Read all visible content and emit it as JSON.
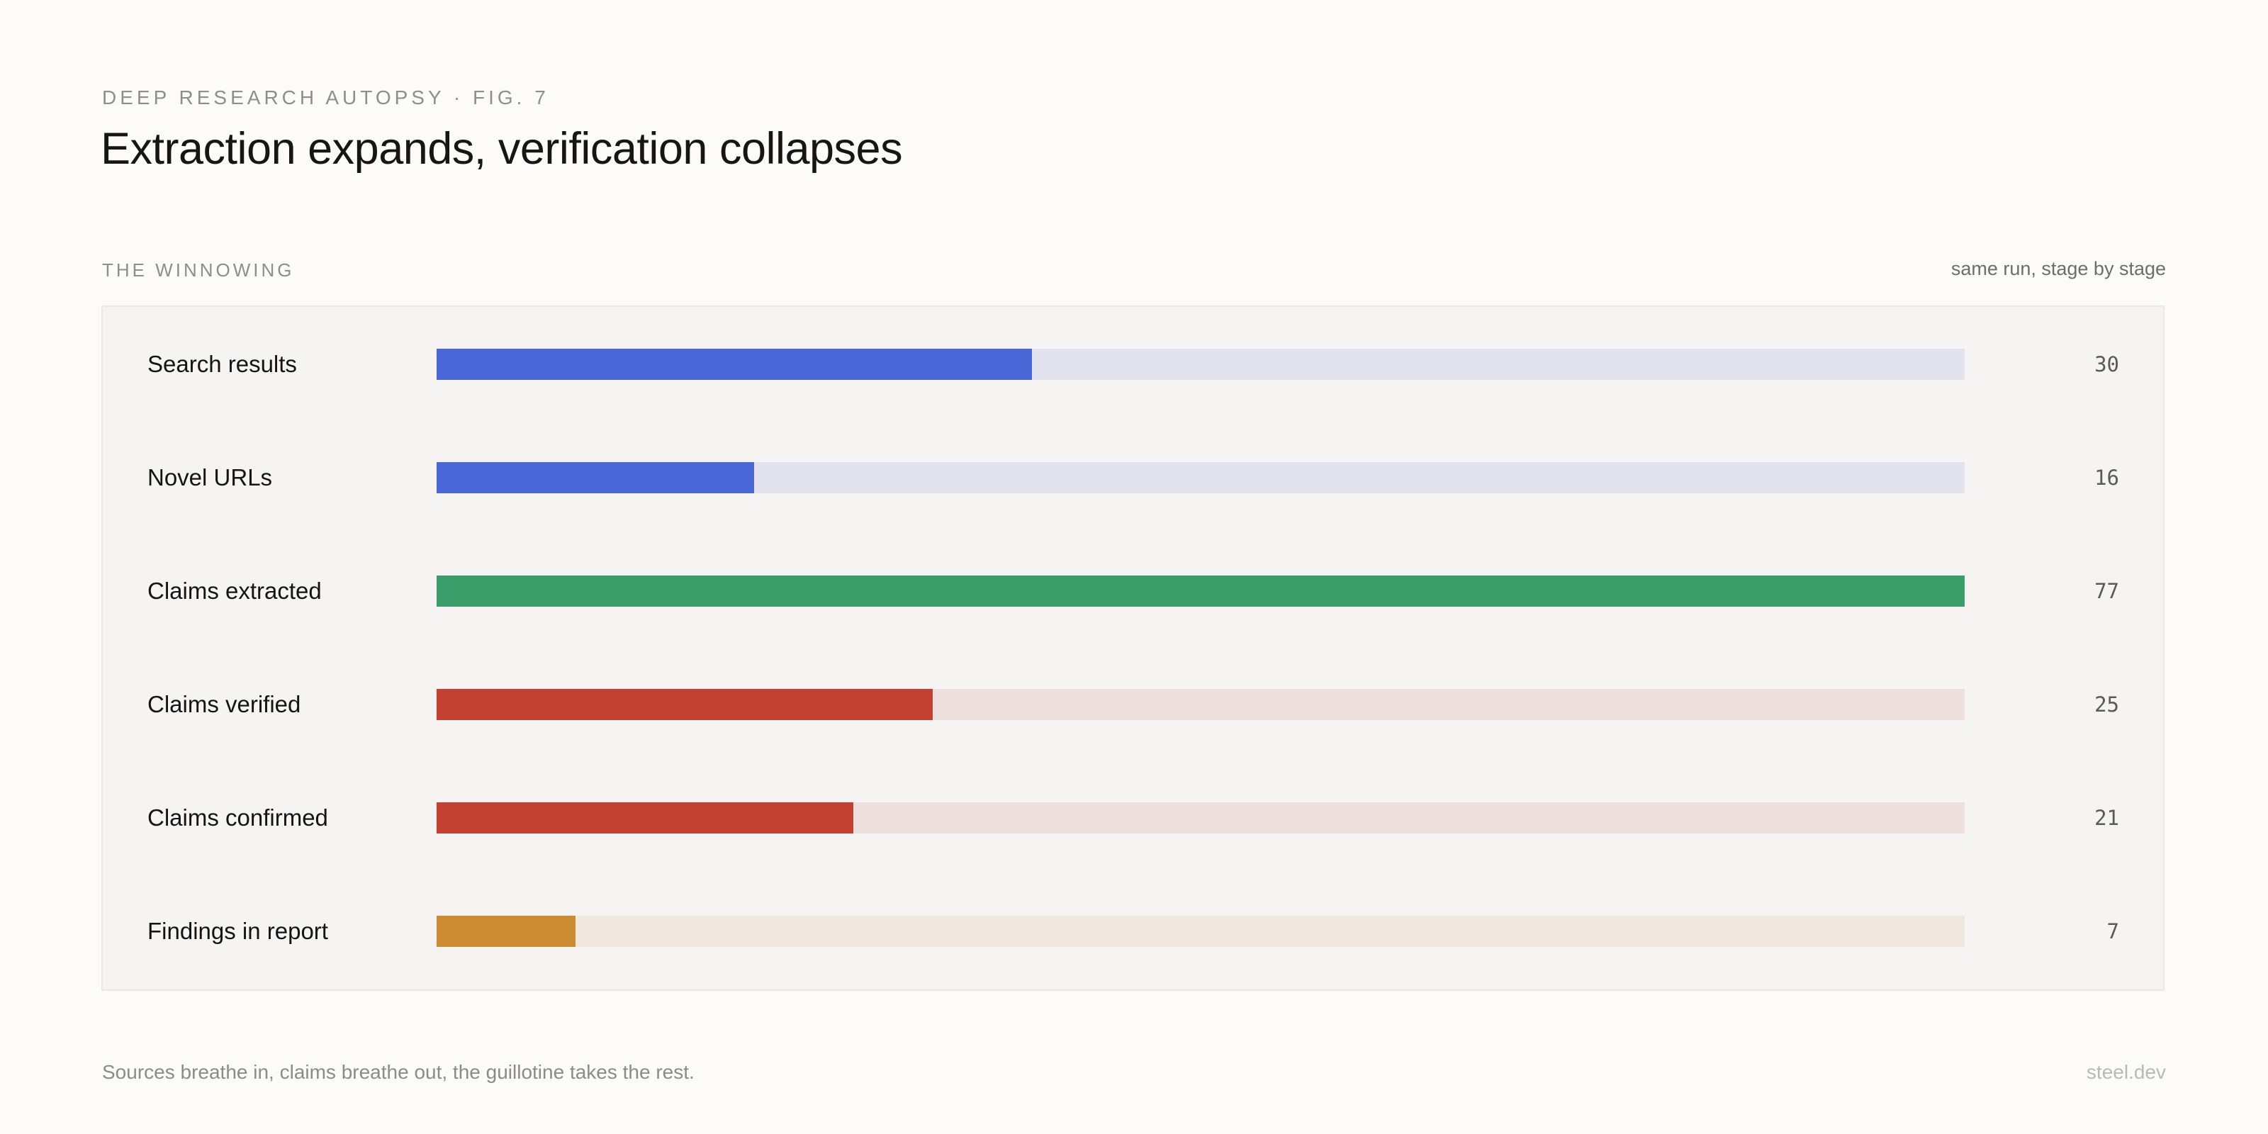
{
  "header": {
    "eyebrow": "DEEP RESEARCH AUTOPSY · FIG. 7",
    "title": "Extraction expands, verification collapses"
  },
  "section": {
    "label": "THE WINNOWING",
    "note": "same run, stage by stage"
  },
  "footer": {
    "caption": "Sources breathe in, claims breathe out, the guillotine takes the rest.",
    "brand": "steel.dev"
  },
  "chart_data": {
    "type": "bar",
    "orientation": "horizontal",
    "title": "Extraction expands, verification collapses",
    "categories": [
      "Search results",
      "Novel URLs",
      "Claims extracted",
      "Claims verified",
      "Claims confirmed",
      "Findings in report"
    ],
    "values": [
      30,
      16,
      77,
      25,
      21,
      7
    ],
    "value_labels": [
      "30",
      "16",
      "77",
      "25",
      "21",
      "7"
    ],
    "xlim": [
      0,
      77
    ],
    "grid": false,
    "legend": "none",
    "bar_colors": [
      "#4a67d8",
      "#4a67d8",
      "#3a9d6a",
      "#c24132",
      "#c24132",
      "#cc8c31"
    ],
    "track_colors": [
      "#e2e3ef",
      "#e2e3ef",
      "#e2e3ef",
      "#ede0dd",
      "#ede0dd",
      "#f0e8de"
    ]
  }
}
